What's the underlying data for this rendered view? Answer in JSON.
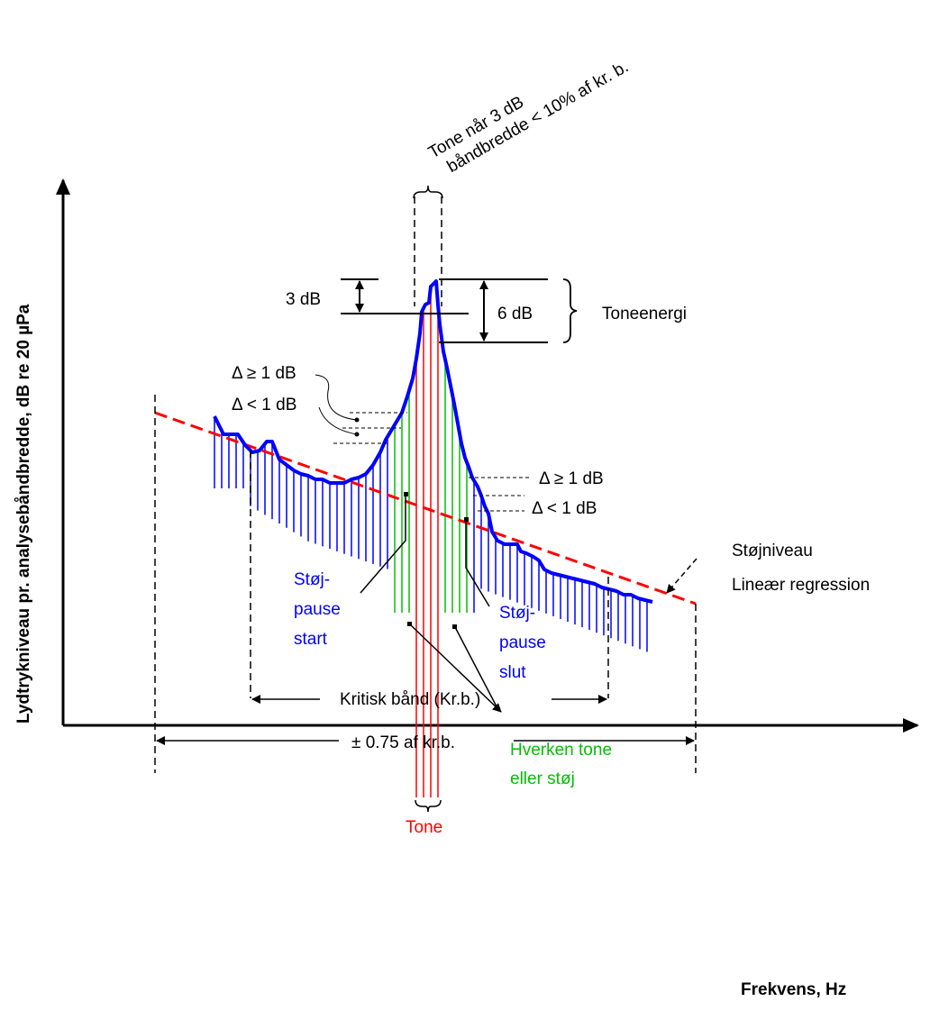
{
  "labels": {
    "y_axis": "Lydtrykniveau pr. analysebåndbredde, dB re 20 µPa",
    "x_axis": "Frekvens, Hz",
    "tone_bw_line1": "Tone når 3 dB",
    "tone_bw_line2": "båndbredde < 10% af kr. b.",
    "three_db": "3 dB",
    "six_db": "6 dB",
    "toneenergi": "Toneenergi",
    "delta_ge_left": "Δ ≥ 1 dB",
    "delta_lt_left": "Δ < 1 dB",
    "delta_ge_right": "Δ ≥ 1 dB",
    "delta_lt_right": "Δ < 1 dB",
    "stojniveau": "Støjniveau",
    "regression": "Lineær regression",
    "pause_start_1": "Støj-",
    "pause_start_2": "pause",
    "pause_start_3": "start",
    "pause_slut_1": "Støj-",
    "pause_slut_2": "pause",
    "pause_slut_3": "slut",
    "hverken_1": "Hverken tone",
    "hverken_2": "eller støj",
    "tone": "Tone",
    "kritisk_band": "Kritisk bånd (Kr.b.)",
    "pm_075": "± 0.75 af kr.b."
  },
  "colors": {
    "noise": "#0000ff",
    "neither": "#00c000",
    "tone": "#ff0000",
    "regression": "#ff0000",
    "spectrum": "#0000ff"
  }
}
